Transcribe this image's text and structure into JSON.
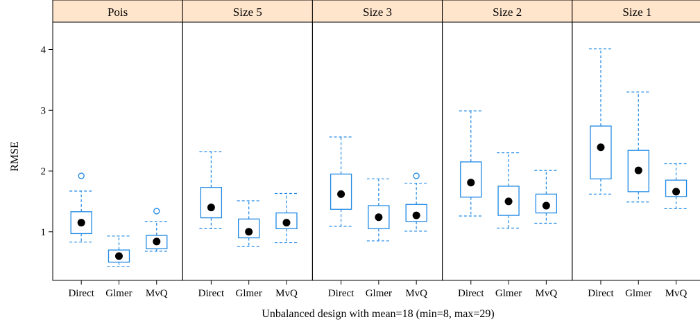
{
  "chart_data": {
    "type": "boxplot",
    "xlabel": "Unbalanced design with mean=18 (min=8, max=29)",
    "ylabel": "RMSE",
    "ylim": [
      0.2,
      4.45
    ],
    "yticks": [
      1,
      2,
      3,
      4
    ],
    "categories": [
      "Direct",
      "Glmer",
      "MvQ"
    ],
    "colors": {
      "box": "#1E88E5",
      "median_dot": "#000000",
      "strip_bg": "#FFE5CC",
      "outlier": "#1E88E5"
    },
    "panels": [
      {
        "label": "Pois",
        "boxes": [
          {
            "category": "Direct",
            "whisker_low": 0.83,
            "q1": 0.97,
            "median": 1.15,
            "q3": 1.33,
            "whisker_high": 1.67,
            "outliers": [
              1.92
            ]
          },
          {
            "category": "Glmer",
            "whisker_low": 0.43,
            "q1": 0.5,
            "median": 0.6,
            "q3": 0.7,
            "whisker_high": 0.93,
            "outliers": []
          },
          {
            "category": "MvQ",
            "whisker_low": 0.68,
            "q1": 0.72,
            "median": 0.84,
            "q3": 0.94,
            "whisker_high": 1.17,
            "outliers": [
              1.34
            ]
          }
        ]
      },
      {
        "label": "Size 5",
        "boxes": [
          {
            "category": "Direct",
            "whisker_low": 1.05,
            "q1": 1.23,
            "median": 1.4,
            "q3": 1.73,
            "whisker_high": 2.32,
            "outliers": []
          },
          {
            "category": "Glmer",
            "whisker_low": 0.76,
            "q1": 0.9,
            "median": 1.0,
            "q3": 1.21,
            "whisker_high": 1.51,
            "outliers": []
          },
          {
            "category": "MvQ",
            "whisker_low": 0.82,
            "q1": 1.05,
            "median": 1.15,
            "q3": 1.31,
            "whisker_high": 1.63,
            "outliers": []
          }
        ]
      },
      {
        "label": "Size 3",
        "boxes": [
          {
            "category": "Direct",
            "whisker_low": 1.09,
            "q1": 1.37,
            "median": 1.62,
            "q3": 1.95,
            "whisker_high": 2.56,
            "outliers": []
          },
          {
            "category": "Glmer",
            "whisker_low": 0.85,
            "q1": 1.05,
            "median": 1.24,
            "q3": 1.43,
            "whisker_high": 1.87,
            "outliers": []
          },
          {
            "category": "MvQ",
            "whisker_low": 1.01,
            "q1": 1.17,
            "median": 1.27,
            "q3": 1.45,
            "whisker_high": 1.8,
            "outliers": [
              1.92
            ]
          }
        ]
      },
      {
        "label": "Size 2",
        "boxes": [
          {
            "category": "Direct",
            "whisker_low": 1.26,
            "q1": 1.57,
            "median": 1.81,
            "q3": 2.15,
            "whisker_high": 2.99,
            "outliers": []
          },
          {
            "category": "Glmer",
            "whisker_low": 1.06,
            "q1": 1.27,
            "median": 1.5,
            "q3": 1.75,
            "whisker_high": 2.3,
            "outliers": []
          },
          {
            "category": "MvQ",
            "whisker_low": 1.14,
            "q1": 1.31,
            "median": 1.43,
            "q3": 1.62,
            "whisker_high": 2.01,
            "outliers": []
          }
        ]
      },
      {
        "label": "Size 1",
        "boxes": [
          {
            "category": "Direct",
            "whisker_low": 1.62,
            "q1": 1.87,
            "median": 2.39,
            "q3": 2.74,
            "whisker_high": 4.01,
            "outliers": []
          },
          {
            "category": "Glmer",
            "whisker_low": 1.49,
            "q1": 1.66,
            "median": 2.01,
            "q3": 2.34,
            "whisker_high": 3.3,
            "outliers": []
          },
          {
            "category": "MvQ",
            "whisker_low": 1.38,
            "q1": 1.58,
            "median": 1.66,
            "q3": 1.85,
            "whisker_high": 2.12,
            "outliers": []
          }
        ]
      }
    ]
  }
}
